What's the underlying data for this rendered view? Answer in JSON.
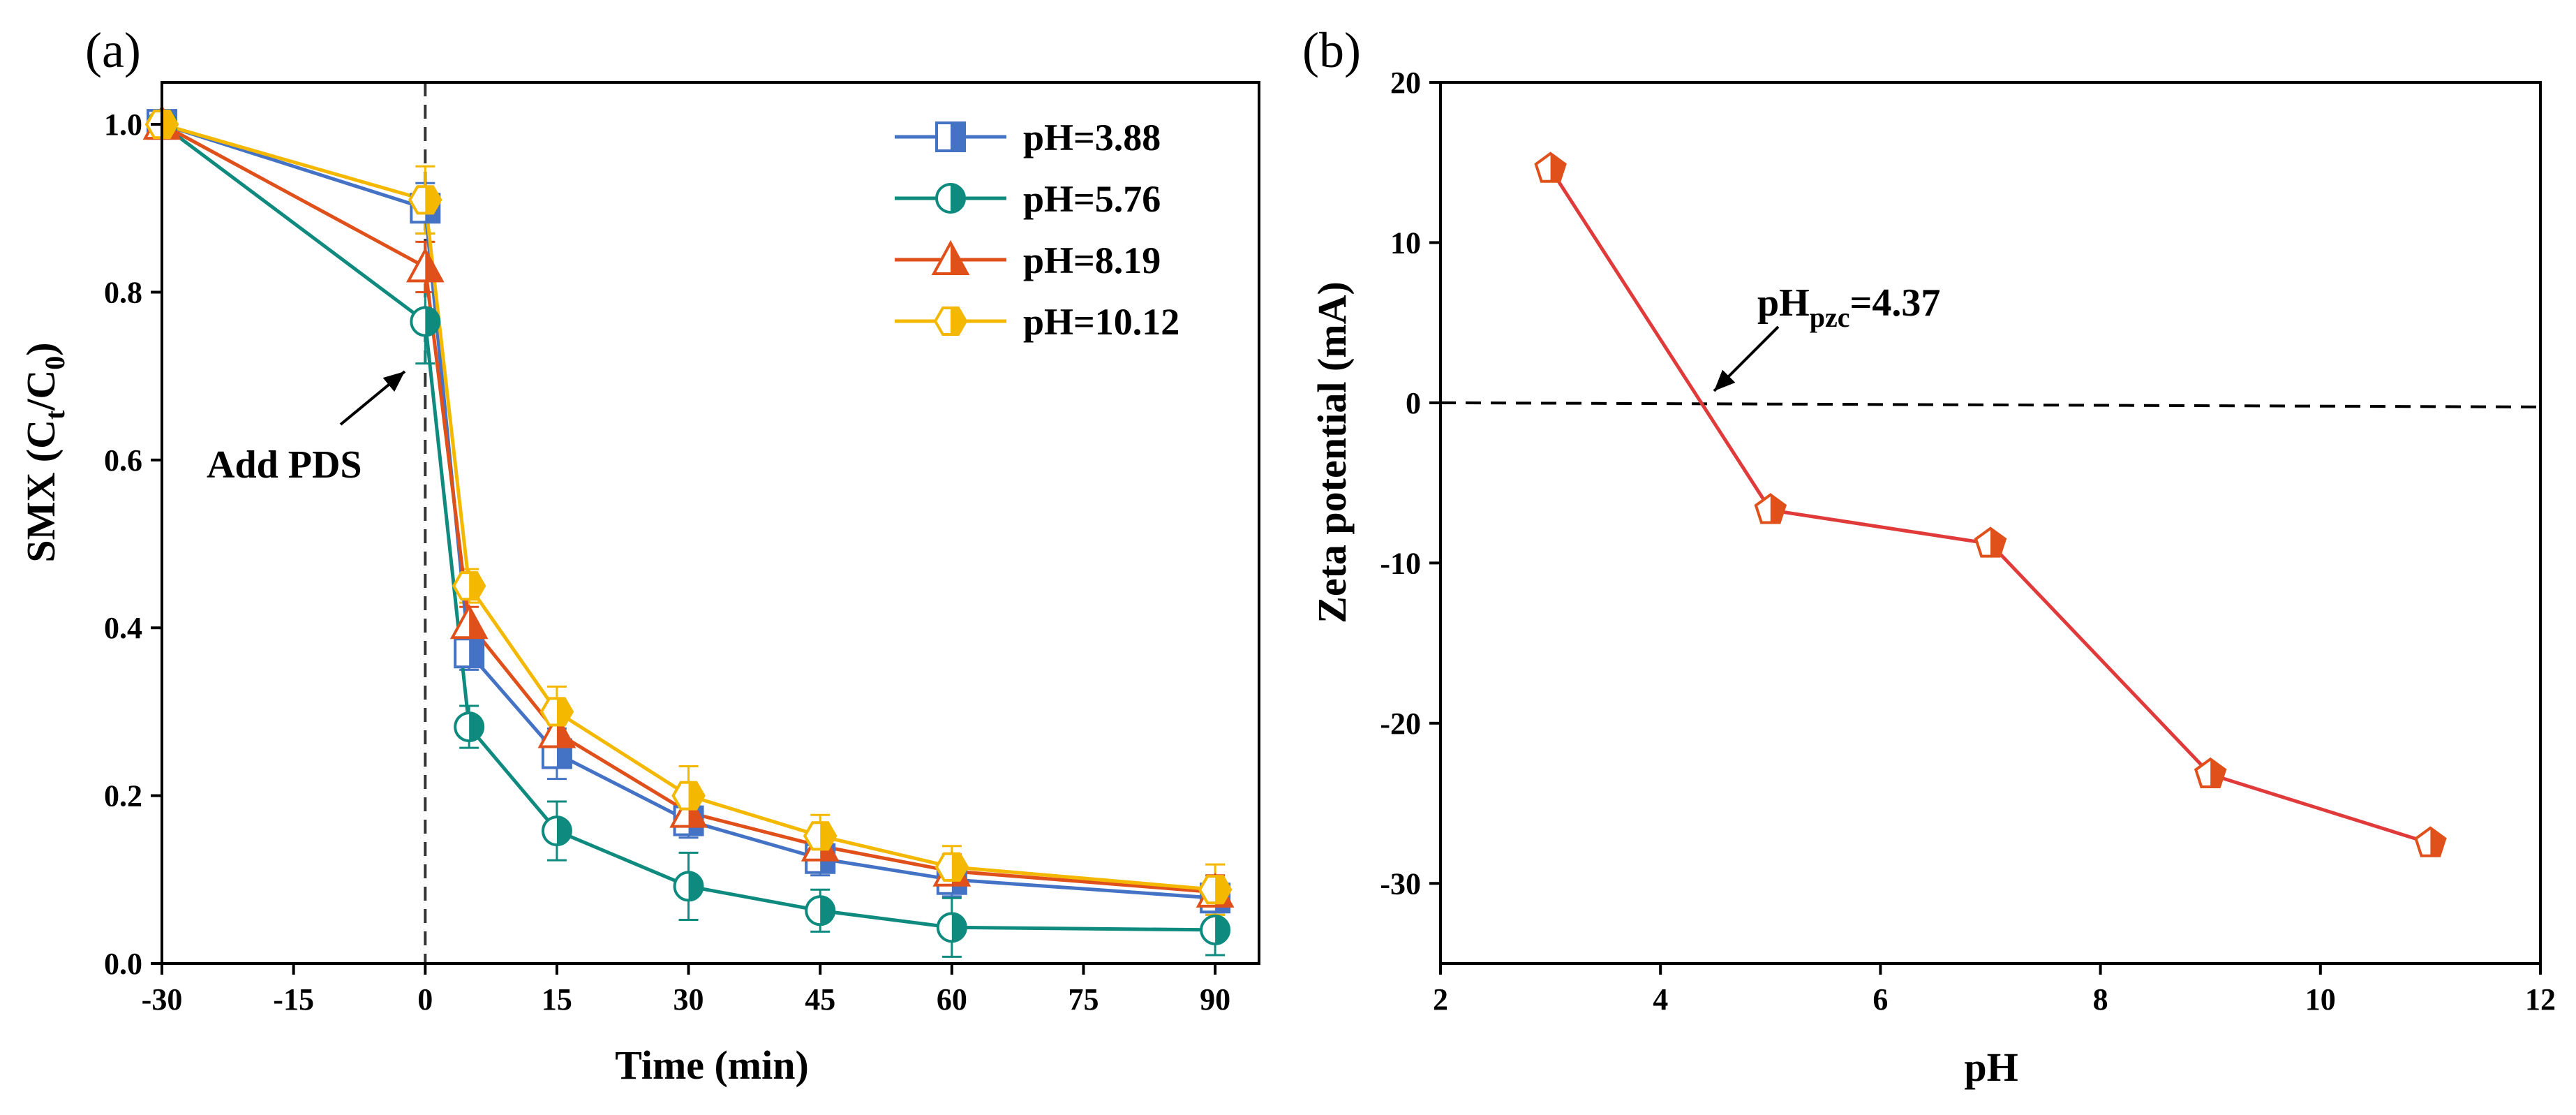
{
  "colors": {
    "ph388": "#4472C4",
    "ph576": "#0E8A7E",
    "ph819": "#E0501A",
    "ph1012": "#F4B800",
    "zeta_line": "#E03A3A",
    "zeta_marker": "#E0501A",
    "axis": "#000000"
  },
  "chart_data": [
    {
      "type": "line",
      "panel_label": "(a)",
      "xlabel": "Time (min)",
      "ylabel": {
        "main": "SMX (C",
        "sub1": "t",
        "mid": "/C",
        "sub2": "0",
        "end": ")"
      },
      "xlim": [
        -30,
        95
      ],
      "ylim": [
        0,
        1.05
      ],
      "xticks": [
        -30,
        -15,
        0,
        15,
        30,
        45,
        60,
        75,
        90
      ],
      "yticks": [
        0.0,
        0.2,
        0.4,
        0.6,
        0.8,
        1.0
      ],
      "xtick_labels": [
        "-30",
        "-15",
        "0",
        "15",
        "30",
        "45",
        "60",
        "75",
        "90"
      ],
      "ytick_labels": [
        "0.0",
        "0.2",
        "0.4",
        "0.6",
        "0.8",
        "1.0"
      ],
      "x": [
        -30,
        0,
        5,
        15,
        30,
        45,
        60,
        90
      ],
      "series": [
        {
          "name": "pH=3.88",
          "color_key": "ph388",
          "marker": "square",
          "values": [
            1.0,
            0.9,
            0.37,
            0.25,
            0.17,
            0.125,
            0.1,
            0.078
          ],
          "errors": [
            0.01,
            0.03,
            0.02,
            0.03,
            0.02,
            0.02,
            0.02,
            0.02
          ]
        },
        {
          "name": "pH=5.76",
          "color_key": "ph576",
          "marker": "circle",
          "values": [
            1.0,
            0.765,
            0.282,
            0.158,
            0.092,
            0.063,
            0.043,
            0.04
          ],
          "errors": [
            0.01,
            0.05,
            0.025,
            0.035,
            0.04,
            0.025,
            0.035,
            0.03
          ]
        },
        {
          "name": "pH=8.19",
          "color_key": "ph819",
          "marker": "triangle",
          "values": [
            1.0,
            0.83,
            0.405,
            0.275,
            0.18,
            0.14,
            0.11,
            0.085
          ],
          "errors": [
            0.01,
            0.03,
            0.02,
            0.02,
            0.02,
            0.02,
            0.02,
            0.02
          ]
        },
        {
          "name": "pH=10.12",
          "color_key": "ph1012",
          "marker": "hexagon",
          "values": [
            1.0,
            0.91,
            0.45,
            0.3,
            0.2,
            0.152,
            0.115,
            0.088
          ],
          "errors": [
            0.01,
            0.04,
            0.02,
            0.03,
            0.035,
            0.025,
            0.025,
            0.03
          ]
        }
      ],
      "vline_x": 0,
      "annotation": {
        "text": "Add PDS",
        "arrow_to": [
          0,
          0.765
        ]
      },
      "legend_position": "top-right"
    },
    {
      "type": "line",
      "panel_label": "(b)",
      "xlabel": "pH",
      "ylabel": "Zeta potential (mA)",
      "xlim": [
        2,
        12
      ],
      "ylim": [
        -35,
        20
      ],
      "xticks": [
        2,
        4,
        6,
        8,
        10,
        12
      ],
      "yticks": [
        -30,
        -20,
        -10,
        0,
        10,
        20
      ],
      "xtick_labels": [
        "2",
        "4",
        "6",
        "8",
        "10",
        "12"
      ],
      "ytick_labels": [
        "-30",
        "-20",
        "-10",
        "0",
        "10",
        "20"
      ],
      "x": [
        3,
        5,
        7,
        9,
        11
      ],
      "values": [
        14.6,
        -6.7,
        -8.8,
        -23.2,
        -27.5
      ],
      "marker": "pentagon",
      "hline_y": 0,
      "annotation": {
        "main": "pH",
        "sub": "pzc",
        "end": "=4.37",
        "arrow_to": [
          4.37,
          0
        ]
      }
    }
  ]
}
